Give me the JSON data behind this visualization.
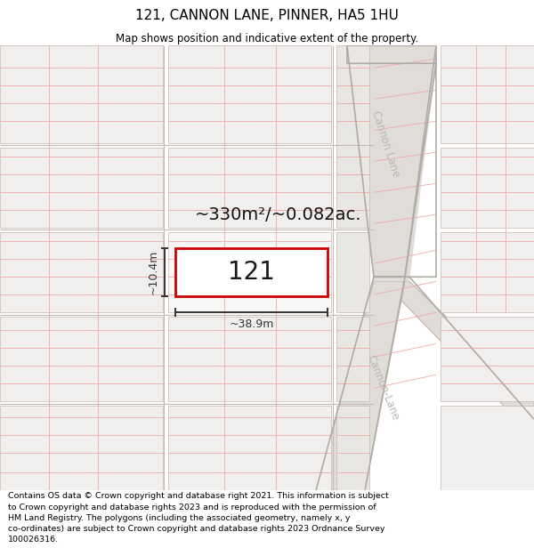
{
  "title": "121, CANNON LANE, PINNER, HA5 1HU",
  "subtitle": "Map shows position and indicative extent of the property.",
  "footer_line1": "Contains OS data © Crown copyright and database right 2021. This information is subject",
  "footer_line2": "to Crown copyright and database rights 2023 and is reproduced with the permission of",
  "footer_line3": "HM Land Registry. The polygons (including the associated geometry, namely x, y",
  "footer_line4": "co-ordinates) are subject to Crown copyright and database rights 2023 Ordnance Survey",
  "footer_line5": "100026316.",
  "bg_color": "#ffffff",
  "block_fill": "#f0efed",
  "block_fill2": "#e8e7e4",
  "road_fill": "#e0ddd8",
  "road_line_color": "#c8b8b4",
  "plot_line_color": "#f0a8a8",
  "property_fill": "#ffffff",
  "property_edge": "#cc0000",
  "area_text": "~330m²/~0.082ac.",
  "label_121": "121",
  "dim_width": "~38.9m",
  "dim_height": "~10.4m",
  "cannon_lane_label": "Cannon Lane",
  "cannon_lane2_label": "Cannon-Lane",
  "road_label_color": "#b8b8b0",
  "dim_color": "#333333",
  "title_fontsize": 11,
  "subtitle_fontsize": 8.5,
  "footer_fontsize": 6.8,
  "area_fontsize": 14,
  "dim_fontsize": 9,
  "label_fontsize": 20,
  "road_label_fontsize": 8.5
}
